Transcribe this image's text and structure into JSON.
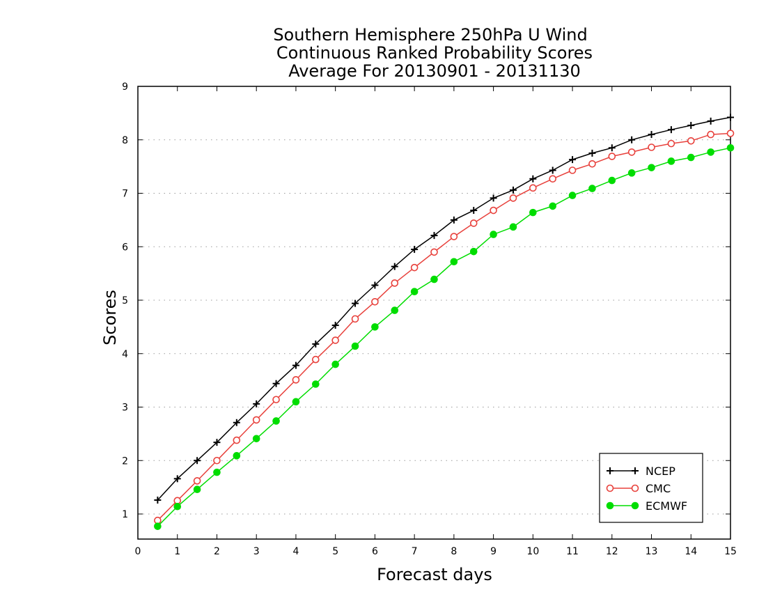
{
  "chart_data": {
    "type": "line",
    "title_lines": [
      "Southern Hemisphere 250hPa U Wind",
      "Continuous Ranked Probability Scores",
      "Average For 20130901 - 20131130"
    ],
    "xlabel": "Forecast days",
    "ylabel": "Scores",
    "xlim": [
      0,
      15
    ],
    "ylim": [
      0.6,
      9
    ],
    "xticks": [
      "0",
      "1",
      "2",
      "3",
      "4",
      "5",
      "6",
      "7",
      "8",
      "9",
      "10",
      "11",
      "12",
      "13",
      "14",
      "15"
    ],
    "yticks": [
      "1",
      "2",
      "3",
      "4",
      "5",
      "6",
      "7",
      "8",
      "9"
    ],
    "grid": "horizontal dotted",
    "legend_position": "bottom-right",
    "x": [
      0.5,
      1,
      1.5,
      2,
      2.5,
      3,
      3.5,
      4,
      4.5,
      5,
      5.5,
      6,
      6.5,
      7,
      7.5,
      8,
      8.5,
      9,
      9.5,
      10,
      10.5,
      11,
      11.5,
      12,
      12.5,
      13,
      13.5,
      14,
      14.5,
      15
    ],
    "series": [
      {
        "name": "NCEP",
        "color": "#000000",
        "marker": "plus",
        "values": [
          1.26,
          1.66,
          2.0,
          2.34,
          2.71,
          3.06,
          3.44,
          3.78,
          4.18,
          4.53,
          4.94,
          5.28,
          5.63,
          5.95,
          6.21,
          6.5,
          6.68,
          6.91,
          7.06,
          7.27,
          7.43,
          7.63,
          7.75,
          7.85,
          8.0,
          8.1,
          8.19,
          8.27,
          8.35,
          8.42
        ]
      },
      {
        "name": "CMC",
        "color": "#e8413c",
        "marker": "open-circle",
        "values": [
          0.88,
          1.25,
          1.62,
          2.0,
          2.38,
          2.76,
          3.14,
          3.51,
          3.89,
          4.25,
          4.65,
          4.97,
          5.32,
          5.61,
          5.9,
          6.19,
          6.44,
          6.68,
          6.91,
          7.1,
          7.27,
          7.43,
          7.55,
          7.69,
          7.77,
          7.86,
          7.93,
          7.98,
          8.1,
          8.12
        ]
      },
      {
        "name": "ECMWF",
        "color": "#00dd00",
        "marker": "filled-circle",
        "values": [
          0.77,
          1.14,
          1.46,
          1.78,
          2.09,
          2.41,
          2.74,
          3.1,
          3.43,
          3.8,
          4.14,
          4.5,
          4.81,
          5.16,
          5.39,
          5.72,
          5.91,
          6.23,
          6.37,
          6.64,
          6.76,
          6.96,
          7.09,
          7.24,
          7.38,
          7.48,
          7.6,
          7.67,
          7.77,
          7.85
        ]
      }
    ]
  }
}
